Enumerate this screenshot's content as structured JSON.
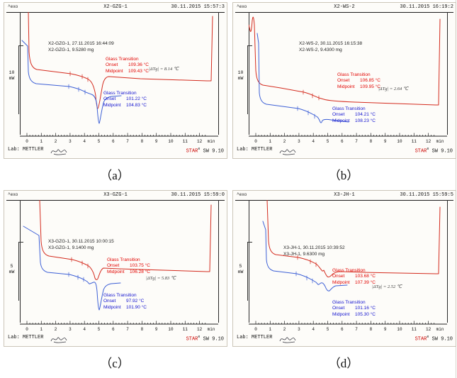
{
  "shared": {
    "exo_label": "^exo",
    "gt_heading": "Glass Transition",
    "onset_label": "Onset",
    "midpoint_label": "Midpoint",
    "axis_unit": "min",
    "axis_ticks": [
      "0",
      "1",
      "2",
      "3",
      "4",
      "5",
      "6",
      "7",
      "8",
      "9",
      "10",
      "11",
      "12"
    ],
    "footer": {
      "lab": "Lab: METTLER",
      "software_prefix": "STAR",
      "software_sup": "e",
      "software_suffix": "SW 9.10"
    },
    "colors": {
      "red_curve": "#d42b1e",
      "blue_curve": "#3c5fd6",
      "red_text": "#e20400",
      "blue_text": "#1212cf"
    }
  },
  "panels": [
    {
      "caption": "（a）",
      "title": "X2-GZG-1",
      "datetime": "30.11.2015 15:57:3",
      "sample_line1": "X2-GZG-1, 27.11.2015 16:44:09",
      "sample_line2": "X2-GZG-1, 9.5280 mg",
      "scale_value": "10",
      "scale_unit": "mW",
      "red": {
        "onset": "109.36 °C",
        "midpoint": "109.43 °C"
      },
      "blue": {
        "onset": "101.22 °C",
        "midpoint": "104.83 °C"
      },
      "handwritten": "|ΔTg| = 8.14 ℃"
    },
    {
      "caption": "（b）",
      "title": "X2-WS-2",
      "datetime": "30.11.2015 16:19:2",
      "sample_line1": "X2-WS-2, 30.11.2015 16:15:38",
      "sample_line2": "X2-WS-2, 9.4300 mg",
      "scale_value": "10",
      "scale_unit": "mW",
      "red": {
        "onset": "106.85 °C",
        "midpoint": "109.95 °C"
      },
      "blue": {
        "onset": "104.21 °C",
        "midpoint": "108.23 °C"
      },
      "handwritten": "|ΔTg| = 2.64 ℃"
    },
    {
      "caption": "（c）",
      "title": "X3-GZG-1",
      "datetime": "30.11.2015 15:59:0",
      "sample_line1": "X3-GZG-1, 30.11.2015 10:00:15",
      "sample_line2": "X3-GZG-1, 9.1400 mg",
      "scale_value": "5",
      "scale_unit": "mW",
      "red": {
        "onset": "103.75 °C",
        "midpoint": "106.28 °C"
      },
      "blue": {
        "onset": "97.92 °C",
        "midpoint": "101.90 °C"
      },
      "handwritten": "|ΔTg| = 5.83 ℃"
    },
    {
      "caption": "（d）",
      "title": "X3-JH-1",
      "datetime": "30.11.2015 15:59:5",
      "sample_line1": "X3-JH-1, 30.11.2015 10:39:52",
      "sample_line2": "X3-JH-1, 9.6300 mg",
      "scale_value": "5",
      "scale_unit": "mW",
      "red": {
        "onset": "103.68 °C",
        "midpoint": "107.39 °C"
      },
      "blue": {
        "onset": "101.16 °C",
        "midpoint": "105.30 °C"
      },
      "handwritten": "|ΔTg| = 2.52 ℃"
    }
  ],
  "chart_data": [
    {
      "type": "line",
      "panel": "a",
      "title": "X2-GZG-1",
      "printed_datetime": "30.11.2015 15:57:3",
      "sample_run": "X2-GZG-1, 27.11.2015 16:44:09",
      "sample_mass": "X2-GZG-1, 9.5280 mg",
      "x_axis": {
        "unit": "min",
        "range": [
          0,
          12.8
        ],
        "tick_step": 1
      },
      "y_axis": {
        "scale_bar": "10 mW",
        "exo_direction": "up"
      },
      "series": [
        {
          "name": "red-curve",
          "color": "#d42b1e",
          "glass_transition": {
            "onset_C": 109.36,
            "midpoint_C": 109.43
          }
        },
        {
          "name": "blue-curve",
          "color": "#3c5fd6",
          "glass_transition": {
            "onset_C": 101.22,
            "midpoint_C": 104.83
          }
        }
      ],
      "handwritten_annotation": "|ΔTg| = 8.14 ℃",
      "footer": "Lab: METTLER — STARe SW 9.10"
    },
    {
      "type": "line",
      "panel": "b",
      "title": "X2-WS-2",
      "printed_datetime": "30.11.2015 16:19:2",
      "sample_run": "X2-WS-2, 30.11.2015 16:15:38",
      "sample_mass": "X2-WS-2, 9.4300 mg",
      "x_axis": {
        "unit": "min",
        "range": [
          0,
          12.8
        ],
        "tick_step": 1
      },
      "y_axis": {
        "scale_bar": "10 mW",
        "exo_direction": "up"
      },
      "series": [
        {
          "name": "red-curve",
          "color": "#d42b1e",
          "glass_transition": {
            "onset_C": 106.85,
            "midpoint_C": 109.95
          }
        },
        {
          "name": "blue-curve",
          "color": "#3c5fd6",
          "glass_transition": {
            "onset_C": 104.21,
            "midpoint_C": 108.23
          }
        }
      ],
      "handwritten_annotation": "|ΔTg| = 2.64 ℃",
      "footer": "Lab: METTLER — STARe SW 9.10"
    },
    {
      "type": "line",
      "panel": "c",
      "title": "X3-GZG-1",
      "printed_datetime": "30.11.2015 15:59:0",
      "sample_run": "X3-GZG-1, 30.11.2015 10:00:15",
      "sample_mass": "X3-GZG-1, 9.1400 mg",
      "x_axis": {
        "unit": "min",
        "range": [
          0,
          12.8
        ],
        "tick_step": 1
      },
      "y_axis": {
        "scale_bar": "5 mW",
        "exo_direction": "up"
      },
      "series": [
        {
          "name": "red-curve",
          "color": "#d42b1e",
          "glass_transition": {
            "onset_C": 103.75,
            "midpoint_C": 106.28
          }
        },
        {
          "name": "blue-curve",
          "color": "#3c5fd6",
          "glass_transition": {
            "onset_C": 97.92,
            "midpoint_C": 101.9
          }
        }
      ],
      "handwritten_annotation": "|ΔTg| = 5.83 ℃",
      "footer": "Lab: METTLER — STARe SW 9.10"
    },
    {
      "type": "line",
      "panel": "d",
      "title": "X3-JH-1",
      "printed_datetime": "30.11.2015 15:59:5",
      "sample_run": "X3-JH-1, 30.11.2015 10:39:52",
      "sample_mass": "X3-JH-1, 9.6300 mg",
      "x_axis": {
        "unit": "min",
        "range": [
          0,
          12.8
        ],
        "tick_step": 1
      },
      "y_axis": {
        "scale_bar": "5 mW",
        "exo_direction": "up"
      },
      "series": [
        {
          "name": "red-curve",
          "color": "#d42b1e",
          "glass_transition": {
            "onset_C": 103.68,
            "midpoint_C": 107.39
          }
        },
        {
          "name": "blue-curve",
          "color": "#3c5fd6",
          "glass_transition": {
            "onset_C": 101.16,
            "midpoint_C": 105.3
          }
        }
      ],
      "handwritten_annotation": "|ΔTg| = 2.52 ℃",
      "footer": "Lab: METTLER — STARe SW 9.10"
    }
  ]
}
